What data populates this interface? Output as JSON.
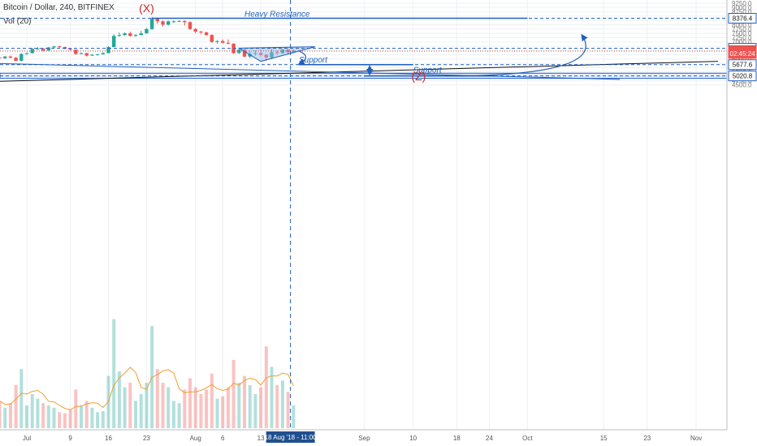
{
  "header": {
    "symbol_line": "Bitcoin / Dollar, 240, BITFINEX",
    "volume_label": "Vol (20)"
  },
  "colors": {
    "up": "#26a69a",
    "down": "#ef5350",
    "drawing": "#1f5fbf",
    "price_line": "#e53935",
    "grid": "#eef0f3",
    "zone_fill": "#dce8f7",
    "trendline": "#111111",
    "volume_ma": "#f0a030"
  },
  "chart_data": {
    "type": "candlestick",
    "y_ticks": [
      "9250.0",
      "9000.0",
      "8750.0",
      "8500.0",
      "8250.0",
      "8000.0",
      "7750.0",
      "7500.0",
      "7250.0",
      "7000.0",
      "6750.0",
      "6500.0",
      "6250.0",
      "6000.0",
      "5750.0",
      "5500.0",
      "5250.0",
      "5000.0",
      "4750.0",
      "4500.0"
    ],
    "x_ticks": [
      {
        "label": "Jul",
        "date": "2018-07-01"
      },
      {
        "label": "9",
        "date": "2018-07-09"
      },
      {
        "label": "16",
        "date": "2018-07-16"
      },
      {
        "label": "23",
        "date": "2018-07-23"
      },
      {
        "label": "Aug",
        "date": "2018-08-01"
      },
      {
        "label": "6",
        "date": "2018-08-06"
      },
      {
        "label": "13",
        "date": "2018-08-13"
      },
      {
        "label": "Sep",
        "date": "2018-09-01"
      },
      {
        "label": "10",
        "date": "2018-09-10"
      },
      {
        "label": "18",
        "date": "2018-09-18"
      },
      {
        "label": "24",
        "date": "2018-09-24"
      },
      {
        "label": "Oct",
        "date": "2018-10-01"
      },
      {
        "label": "15",
        "date": "2018-10-15"
      },
      {
        "label": "23",
        "date": "2018-10-23"
      },
      {
        "label": "Nov",
        "date": "2018-11-01"
      }
    ],
    "price_badges": [
      {
        "label": "8376.4",
        "value": 8376.4,
        "style": "line"
      },
      {
        "label": "6627.8",
        "value": 6627.8,
        "style": "line"
      },
      {
        "label": "6485.1",
        "value": 6485.1,
        "style": "dark"
      },
      {
        "label": "6468.2",
        "value": 6468.2,
        "style": "red"
      },
      {
        "label": "02:45:24",
        "value": 6330,
        "style": "red"
      },
      {
        "label": "5677.6",
        "value": 5677.6,
        "style": "line"
      },
      {
        "label": "5020.8",
        "value": 5020.8,
        "style": "line"
      }
    ],
    "crosshair_label": "18 Aug '18 - 11:00",
    "annotations": [
      {
        "text": "(X)",
        "date": "2018-07-23",
        "value": 8720,
        "color": "#c62828"
      },
      {
        "text": "Heavy Resistance",
        "date": "2018-08-10",
        "value": 8480,
        "color": "#1f5fbf"
      },
      {
        "text": "Support",
        "date": "2018-08-20",
        "value": 5800,
        "color": "#1f5fbf"
      },
      {
        "text": "Support",
        "date": "2018-09-10",
        "value": 5210,
        "color": "#1f5fbf"
      },
      {
        "text": "(Z)",
        "date": "2018-09-11",
        "value": 4780,
        "color": "#c62828"
      }
    ],
    "drawings": {
      "resistance_line": {
        "from": "2018-07-24",
        "to": "2018-10-01",
        "value": 8376.4
      },
      "triangle": {
        "a": {
          "date": "2018-08-09",
          "value": 6640
        },
        "b": {
          "date": "2018-08-23",
          "value": 6720
        },
        "c": {
          "date": "2018-08-13",
          "value": 5870
        }
      },
      "support_line_1": {
        "from": "2018-08-20",
        "to": "2018-09-10",
        "value": 5677.6
      },
      "support_line_2": {
        "from": "2018-09-01",
        "to": "2018-09-25",
        "value": 5020.8
      },
      "zone": {
        "low": 4880,
        "high": 5180
      },
      "black_trendline": {
        "from": {
          "date": "2018-06-25",
          "value": 4700
        },
        "to": {
          "date": "2018-11-05",
          "value": 5870
        }
      },
      "blue_trendline": {
        "from": {
          "date": "2018-06-25",
          "value": 5750
        },
        "to": {
          "date": "2018-10-18",
          "value": 4820
        }
      }
    },
    "candles": [
      [
        "2018-06-26",
        6100,
        6150,
        6000,
        6050
      ],
      [
        "2018-06-27",
        6050,
        6180,
        6020,
        6150
      ],
      [
        "2018-06-28",
        6150,
        6200,
        6050,
        6080
      ],
      [
        "2018-06-29",
        6080,
        6120,
        5880,
        5900
      ],
      [
        "2018-06-30",
        5900,
        6350,
        5880,
        6300
      ],
      [
        "2018-07-01",
        6300,
        6380,
        6250,
        6350
      ],
      [
        "2018-07-02",
        6350,
        6650,
        6320,
        6600
      ],
      [
        "2018-07-03",
        6600,
        6700,
        6550,
        6620
      ],
      [
        "2018-07-04",
        6620,
        6640,
        6450,
        6500
      ],
      [
        "2018-07-05",
        6500,
        6700,
        6480,
        6680
      ],
      [
        "2018-07-06",
        6680,
        6760,
        6600,
        6740
      ],
      [
        "2018-07-07",
        6740,
        6780,
        6650,
        6700
      ],
      [
        "2018-07-08",
        6700,
        6720,
        6580,
        6600
      ],
      [
        "2018-07-09",
        6600,
        6630,
        6500,
        6550
      ],
      [
        "2018-07-10",
        6550,
        6560,
        6250,
        6300
      ],
      [
        "2018-07-11",
        6300,
        6380,
        6280,
        6350
      ],
      [
        "2018-07-12",
        6350,
        6360,
        6150,
        6200
      ],
      [
        "2018-07-13",
        6200,
        6300,
        6180,
        6250
      ],
      [
        "2018-07-14",
        6250,
        6300,
        6200,
        6280
      ],
      [
        "2018-07-15",
        6280,
        6400,
        6260,
        6350
      ],
      [
        "2018-07-16",
        6350,
        6750,
        6340,
        6700
      ],
      [
        "2018-07-17",
        6700,
        7450,
        6690,
        7350
      ],
      [
        "2018-07-18",
        7350,
        7550,
        7300,
        7400
      ],
      [
        "2018-07-19",
        7400,
        7550,
        7350,
        7500
      ],
      [
        "2018-07-20",
        7500,
        7600,
        7300,
        7350
      ],
      [
        "2018-07-21",
        7350,
        7450,
        7300,
        7400
      ],
      [
        "2018-07-22",
        7400,
        7650,
        7380,
        7500
      ],
      [
        "2018-07-23",
        7500,
        7800,
        7480,
        7750
      ],
      [
        "2018-07-24",
        7750,
        8450,
        7700,
        8350
      ],
      [
        "2018-07-25",
        8350,
        8400,
        8050,
        8200
      ],
      [
        "2018-07-26",
        8200,
        8250,
        7900,
        8000
      ],
      [
        "2018-07-27",
        8000,
        8250,
        7950,
        8200
      ],
      [
        "2018-07-28",
        8200,
        8250,
        8100,
        8200
      ],
      [
        "2018-07-29",
        8200,
        8250,
        8150,
        8220
      ],
      [
        "2018-07-30",
        8220,
        8250,
        7950,
        8150
      ],
      [
        "2018-07-31",
        8150,
        8200,
        7700,
        7750
      ],
      [
        "2018-08-01",
        7750,
        7800,
        7500,
        7600
      ],
      [
        "2018-08-02",
        7600,
        7650,
        7450,
        7550
      ],
      [
        "2018-08-03",
        7550,
        7600,
        7350,
        7400
      ],
      [
        "2018-08-04",
        7400,
        7450,
        6950,
        7000
      ],
      [
        "2018-08-05",
        7000,
        7100,
        6900,
        7050
      ],
      [
        "2018-08-06",
        7050,
        7150,
        6900,
        6950
      ],
      [
        "2018-08-07",
        6950,
        7150,
        6850,
        6900
      ],
      [
        "2018-08-08",
        6900,
        6920,
        6300,
        6350
      ],
      [
        "2018-08-09",
        6350,
        6600,
        6300,
        6550
      ],
      [
        "2018-08-10",
        6550,
        6580,
        6100,
        6150
      ],
      [
        "2018-08-11",
        6150,
        6450,
        6050,
        6300
      ],
      [
        "2018-08-12",
        6300,
        6500,
        6200,
        6350
      ],
      [
        "2018-08-13",
        6350,
        6550,
        6150,
        6250
      ],
      [
        "2018-08-14",
        6250,
        6300,
        5900,
        6100
      ],
      [
        "2018-08-15",
        6100,
        6600,
        6000,
        6400
      ],
      [
        "2018-08-16",
        6400,
        6500,
        6250,
        6350
      ],
      [
        "2018-08-17",
        6350,
        6600,
        6300,
        6550
      ],
      [
        "2018-08-18",
        6550,
        6600,
        6300,
        6400
      ],
      [
        "2018-08-19",
        6400,
        6560,
        6350,
        6480
      ]
    ],
    "volume": [
      [
        "2018-06-26",
        1200
      ],
      [
        "2018-06-27",
        900
      ],
      [
        "2018-06-28",
        1100
      ],
      [
        "2018-06-29",
        1900
      ],
      [
        "2018-06-30",
        2600
      ],
      [
        "2018-07-01",
        1000
      ],
      [
        "2018-07-02",
        1500
      ],
      [
        "2018-07-03",
        1300
      ],
      [
        "2018-07-04",
        1100
      ],
      [
        "2018-07-05",
        1000
      ],
      [
        "2018-07-06",
        900
      ],
      [
        "2018-07-07",
        700
      ],
      [
        "2018-07-08",
        650
      ],
      [
        "2018-07-09",
        800
      ],
      [
        "2018-07-10",
        1700
      ],
      [
        "2018-07-11",
        1000
      ],
      [
        "2018-07-12",
        1200
      ],
      [
        "2018-07-13",
        900
      ],
      [
        "2018-07-14",
        700
      ],
      [
        "2018-07-15",
        750
      ],
      [
        "2018-07-16",
        2300
      ],
      [
        "2018-07-17",
        4800
      ],
      [
        "2018-07-18",
        2500
      ],
      [
        "2018-07-19",
        1800
      ],
      [
        "2018-07-20",
        2000
      ],
      [
        "2018-07-21",
        1200
      ],
      [
        "2018-07-22",
        1500
      ],
      [
        "2018-07-23",
        2000
      ],
      [
        "2018-07-24",
        4500
      ],
      [
        "2018-07-25",
        2600
      ],
      [
        "2018-07-26",
        2000
      ],
      [
        "2018-07-27",
        1800
      ],
      [
        "2018-07-28",
        1200
      ],
      [
        "2018-07-29",
        1100
      ],
      [
        "2018-07-30",
        1700
      ],
      [
        "2018-07-31",
        2200
      ],
      [
        "2018-08-01",
        1800
      ],
      [
        "2018-08-02",
        1500
      ],
      [
        "2018-08-03",
        1700
      ],
      [
        "2018-08-04",
        2400
      ],
      [
        "2018-08-05",
        1300
      ],
      [
        "2018-08-06",
        1400
      ],
      [
        "2018-08-07",
        1800
      ],
      [
        "2018-08-08",
        3000
      ],
      [
        "2018-08-09",
        2000
      ],
      [
        "2018-08-10",
        2300
      ],
      [
        "2018-08-11",
        1900
      ],
      [
        "2018-08-12",
        1500
      ],
      [
        "2018-08-13",
        1800
      ],
      [
        "2018-08-14",
        3600
      ],
      [
        "2018-08-15",
        2700
      ],
      [
        "2018-08-16",
        1900
      ],
      [
        "2018-08-17",
        2100
      ],
      [
        "2018-08-18",
        1600
      ],
      [
        "2018-08-19",
        1000
      ]
    ]
  }
}
